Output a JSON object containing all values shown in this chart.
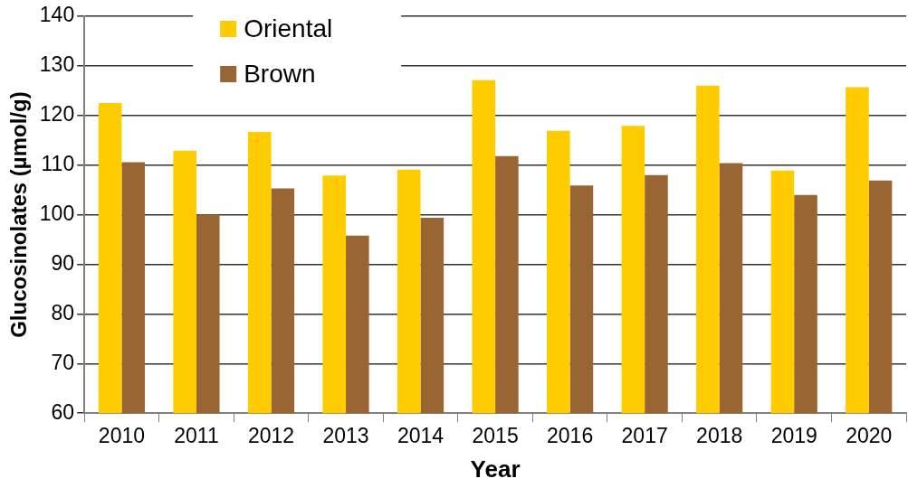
{
  "chart_data": {
    "type": "bar",
    "xlabel": "Year",
    "ylabel": "Glucosinolates (µmol/g)",
    "categories": [
      "2010",
      "2011",
      "2012",
      "2013",
      "2014",
      "2015",
      "2016",
      "2017",
      "2018",
      "2019",
      "2020"
    ],
    "series": [
      {
        "name": "Oriental",
        "color": "#ffcc00",
        "values": [
          122.5,
          112.9,
          116.7,
          107.9,
          109.1,
          127.1,
          116.9,
          117.9,
          126,
          108.9,
          125.7
        ]
      },
      {
        "name": "Brown",
        "color": "#996633",
        "values": [
          110.6,
          100,
          105.3,
          95.8,
          99.4,
          111.8,
          105.9,
          108,
          110.4,
          104,
          106.9
        ]
      }
    ],
    "ylim": [
      60,
      140
    ],
    "yticks": [
      60,
      70,
      80,
      90,
      100,
      110,
      120,
      130,
      140
    ],
    "grid": "y",
    "legend": "top"
  }
}
